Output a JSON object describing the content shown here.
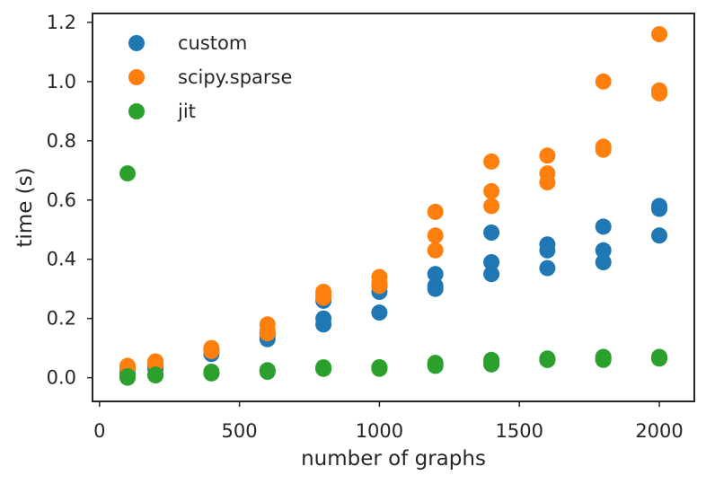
{
  "chart_data": {
    "type": "scatter",
    "title": "",
    "xlabel": "number of graphs",
    "ylabel": "time (s)",
    "xlim": [
      -25,
      2125
    ],
    "ylim": [
      -0.08,
      1.23
    ],
    "xticks": [
      0,
      500,
      1000,
      1500,
      2000
    ],
    "yticks": [
      0.0,
      0.2,
      0.4,
      0.6,
      0.8,
      1.0,
      1.2
    ],
    "xtick_labels": [
      "0",
      "500",
      "1000",
      "1500",
      "2000"
    ],
    "ytick_labels": [
      "0.0",
      "0.2",
      "0.4",
      "0.6",
      "0.8",
      "1.0",
      "1.2"
    ],
    "grid": false,
    "legend_position": "top-left",
    "series": [
      {
        "name": "custom",
        "color": "#1f77b4",
        "points": [
          [
            100,
            0.03
          ],
          [
            100,
            0.02
          ],
          [
            100,
            0.015
          ],
          [
            200,
            0.04
          ],
          [
            200,
            0.035
          ],
          [
            200,
            0.03
          ],
          [
            400,
            0.09
          ],
          [
            400,
            0.08
          ],
          [
            400,
            0.095
          ],
          [
            600,
            0.13
          ],
          [
            600,
            0.15
          ],
          [
            600,
            0.14
          ],
          [
            800,
            0.26
          ],
          [
            800,
            0.2
          ],
          [
            800,
            0.18
          ],
          [
            1000,
            0.29
          ],
          [
            1000,
            0.31
          ],
          [
            1000,
            0.22
          ],
          [
            1200,
            0.35
          ],
          [
            1200,
            0.31
          ],
          [
            1200,
            0.3
          ],
          [
            1400,
            0.49
          ],
          [
            1400,
            0.39
          ],
          [
            1400,
            0.35
          ],
          [
            1600,
            0.45
          ],
          [
            1600,
            0.43
          ],
          [
            1600,
            0.37
          ],
          [
            1800,
            0.51
          ],
          [
            1800,
            0.43
          ],
          [
            1800,
            0.39
          ],
          [
            2000,
            0.58
          ],
          [
            2000,
            0.57
          ],
          [
            2000,
            0.48
          ]
        ]
      },
      {
        "name": "scipy.sparse",
        "color": "#ff7f0e",
        "points": [
          [
            100,
            0.04
          ],
          [
            100,
            0.03
          ],
          [
            100,
            0.035
          ],
          [
            200,
            0.055
          ],
          [
            200,
            0.05
          ],
          [
            200,
            0.045
          ],
          [
            400,
            0.1
          ],
          [
            400,
            0.095
          ],
          [
            400,
            0.09
          ],
          [
            600,
            0.18
          ],
          [
            600,
            0.16
          ],
          [
            600,
            0.15
          ],
          [
            800,
            0.28
          ],
          [
            800,
            0.29
          ],
          [
            800,
            0.27
          ],
          [
            1000,
            0.34
          ],
          [
            1000,
            0.32
          ],
          [
            1000,
            0.31
          ],
          [
            1200,
            0.56
          ],
          [
            1200,
            0.48
          ],
          [
            1200,
            0.43
          ],
          [
            1400,
            0.73
          ],
          [
            1400,
            0.63
          ],
          [
            1400,
            0.58
          ],
          [
            1600,
            0.75
          ],
          [
            1600,
            0.69
          ],
          [
            1600,
            0.66
          ],
          [
            1800,
            1.0
          ],
          [
            1800,
            0.78
          ],
          [
            1800,
            0.77
          ],
          [
            2000,
            1.16
          ],
          [
            2000,
            0.97
          ],
          [
            2000,
            0.96
          ]
        ]
      },
      {
        "name": "jit",
        "color": "#2ca02c",
        "points": [
          [
            100,
            0.69
          ],
          [
            100,
            0.005
          ],
          [
            100,
            0.0
          ],
          [
            200,
            0.01
          ],
          [
            200,
            0.01
          ],
          [
            200,
            0.008
          ],
          [
            400,
            0.02
          ],
          [
            400,
            0.015
          ],
          [
            400,
            0.015
          ],
          [
            600,
            0.025
          ],
          [
            600,
            0.02
          ],
          [
            600,
            0.025
          ],
          [
            800,
            0.035
          ],
          [
            800,
            0.03
          ],
          [
            800,
            0.03
          ],
          [
            1000,
            0.035
          ],
          [
            1000,
            0.035
          ],
          [
            1000,
            0.03
          ],
          [
            1200,
            0.05
          ],
          [
            1200,
            0.045
          ],
          [
            1200,
            0.04
          ],
          [
            1400,
            0.06
          ],
          [
            1400,
            0.05
          ],
          [
            1400,
            0.045
          ],
          [
            1600,
            0.065
          ],
          [
            1600,
            0.06
          ],
          [
            1600,
            0.06
          ],
          [
            1800,
            0.07
          ],
          [
            1800,
            0.065
          ],
          [
            1800,
            0.06
          ],
          [
            2000,
            0.07
          ],
          [
            2000,
            0.065
          ],
          [
            2000,
            0.065
          ]
        ]
      }
    ]
  }
}
